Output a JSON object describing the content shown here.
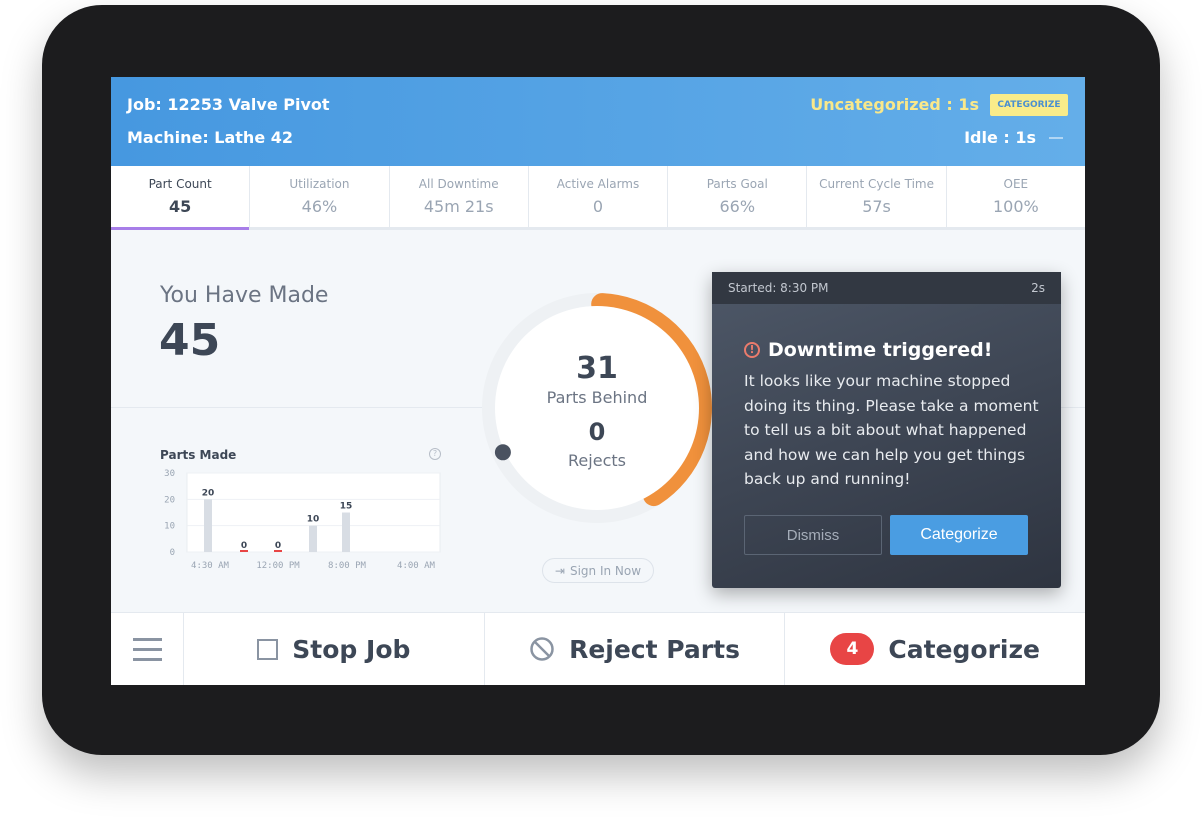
{
  "header": {
    "job": "Job: 12253 Valve Pivot",
    "machine": "Machine: Lathe 42",
    "uncategorized": "Uncategorized : 1s",
    "categorize_button": "CATEGORIZE",
    "idle": "Idle : 1s"
  },
  "tabs": [
    {
      "label": "Part Count",
      "value": "45"
    },
    {
      "label": "Utilization",
      "value": "46%"
    },
    {
      "label": "All Downtime",
      "value": "45m 21s"
    },
    {
      "label": "Active Alarms",
      "value": "0"
    },
    {
      "label": "Parts Goal",
      "value": "66%"
    },
    {
      "label": "Current Cycle Time",
      "value": "57s"
    },
    {
      "label": "OEE",
      "value": "100%"
    }
  ],
  "made": {
    "label": "You Have Made",
    "value": "45"
  },
  "donut": {
    "behind_value": "31",
    "behind_label": "Parts Behind",
    "rejects_value": "0",
    "rejects_label": "Rejects",
    "progress_fraction": 0.4,
    "arc_color": "#f0913c"
  },
  "sign_in": "Sign In Now",
  "popup": {
    "started": "Started: 8:30 PM",
    "elapsed": "2s",
    "title": "Downtime triggered!",
    "body": "It looks like your machine stopped doing its thing. Please take a moment to tell us a bit about what happened and how we can help you get things back up and running!",
    "dismiss": "Dismiss",
    "categorize": "Categorize"
  },
  "bottom": {
    "stop_job": "Stop Job",
    "reject_parts": "Reject Parts",
    "categorize": "Categorize",
    "badge": "4"
  },
  "chart_data": {
    "type": "bar",
    "title": "Parts Made",
    "values": [
      20,
      0,
      0,
      10,
      15
    ],
    "labels": [
      "20",
      "0",
      "0",
      "10",
      "15"
    ],
    "xticks": [
      "4:30 AM",
      "12:00 PM",
      "8:00 PM",
      "4:00 AM"
    ],
    "yticks": [
      "0",
      "10",
      "20",
      "30"
    ],
    "ylim": [
      0,
      30
    ],
    "zero_color": "#e84545"
  }
}
